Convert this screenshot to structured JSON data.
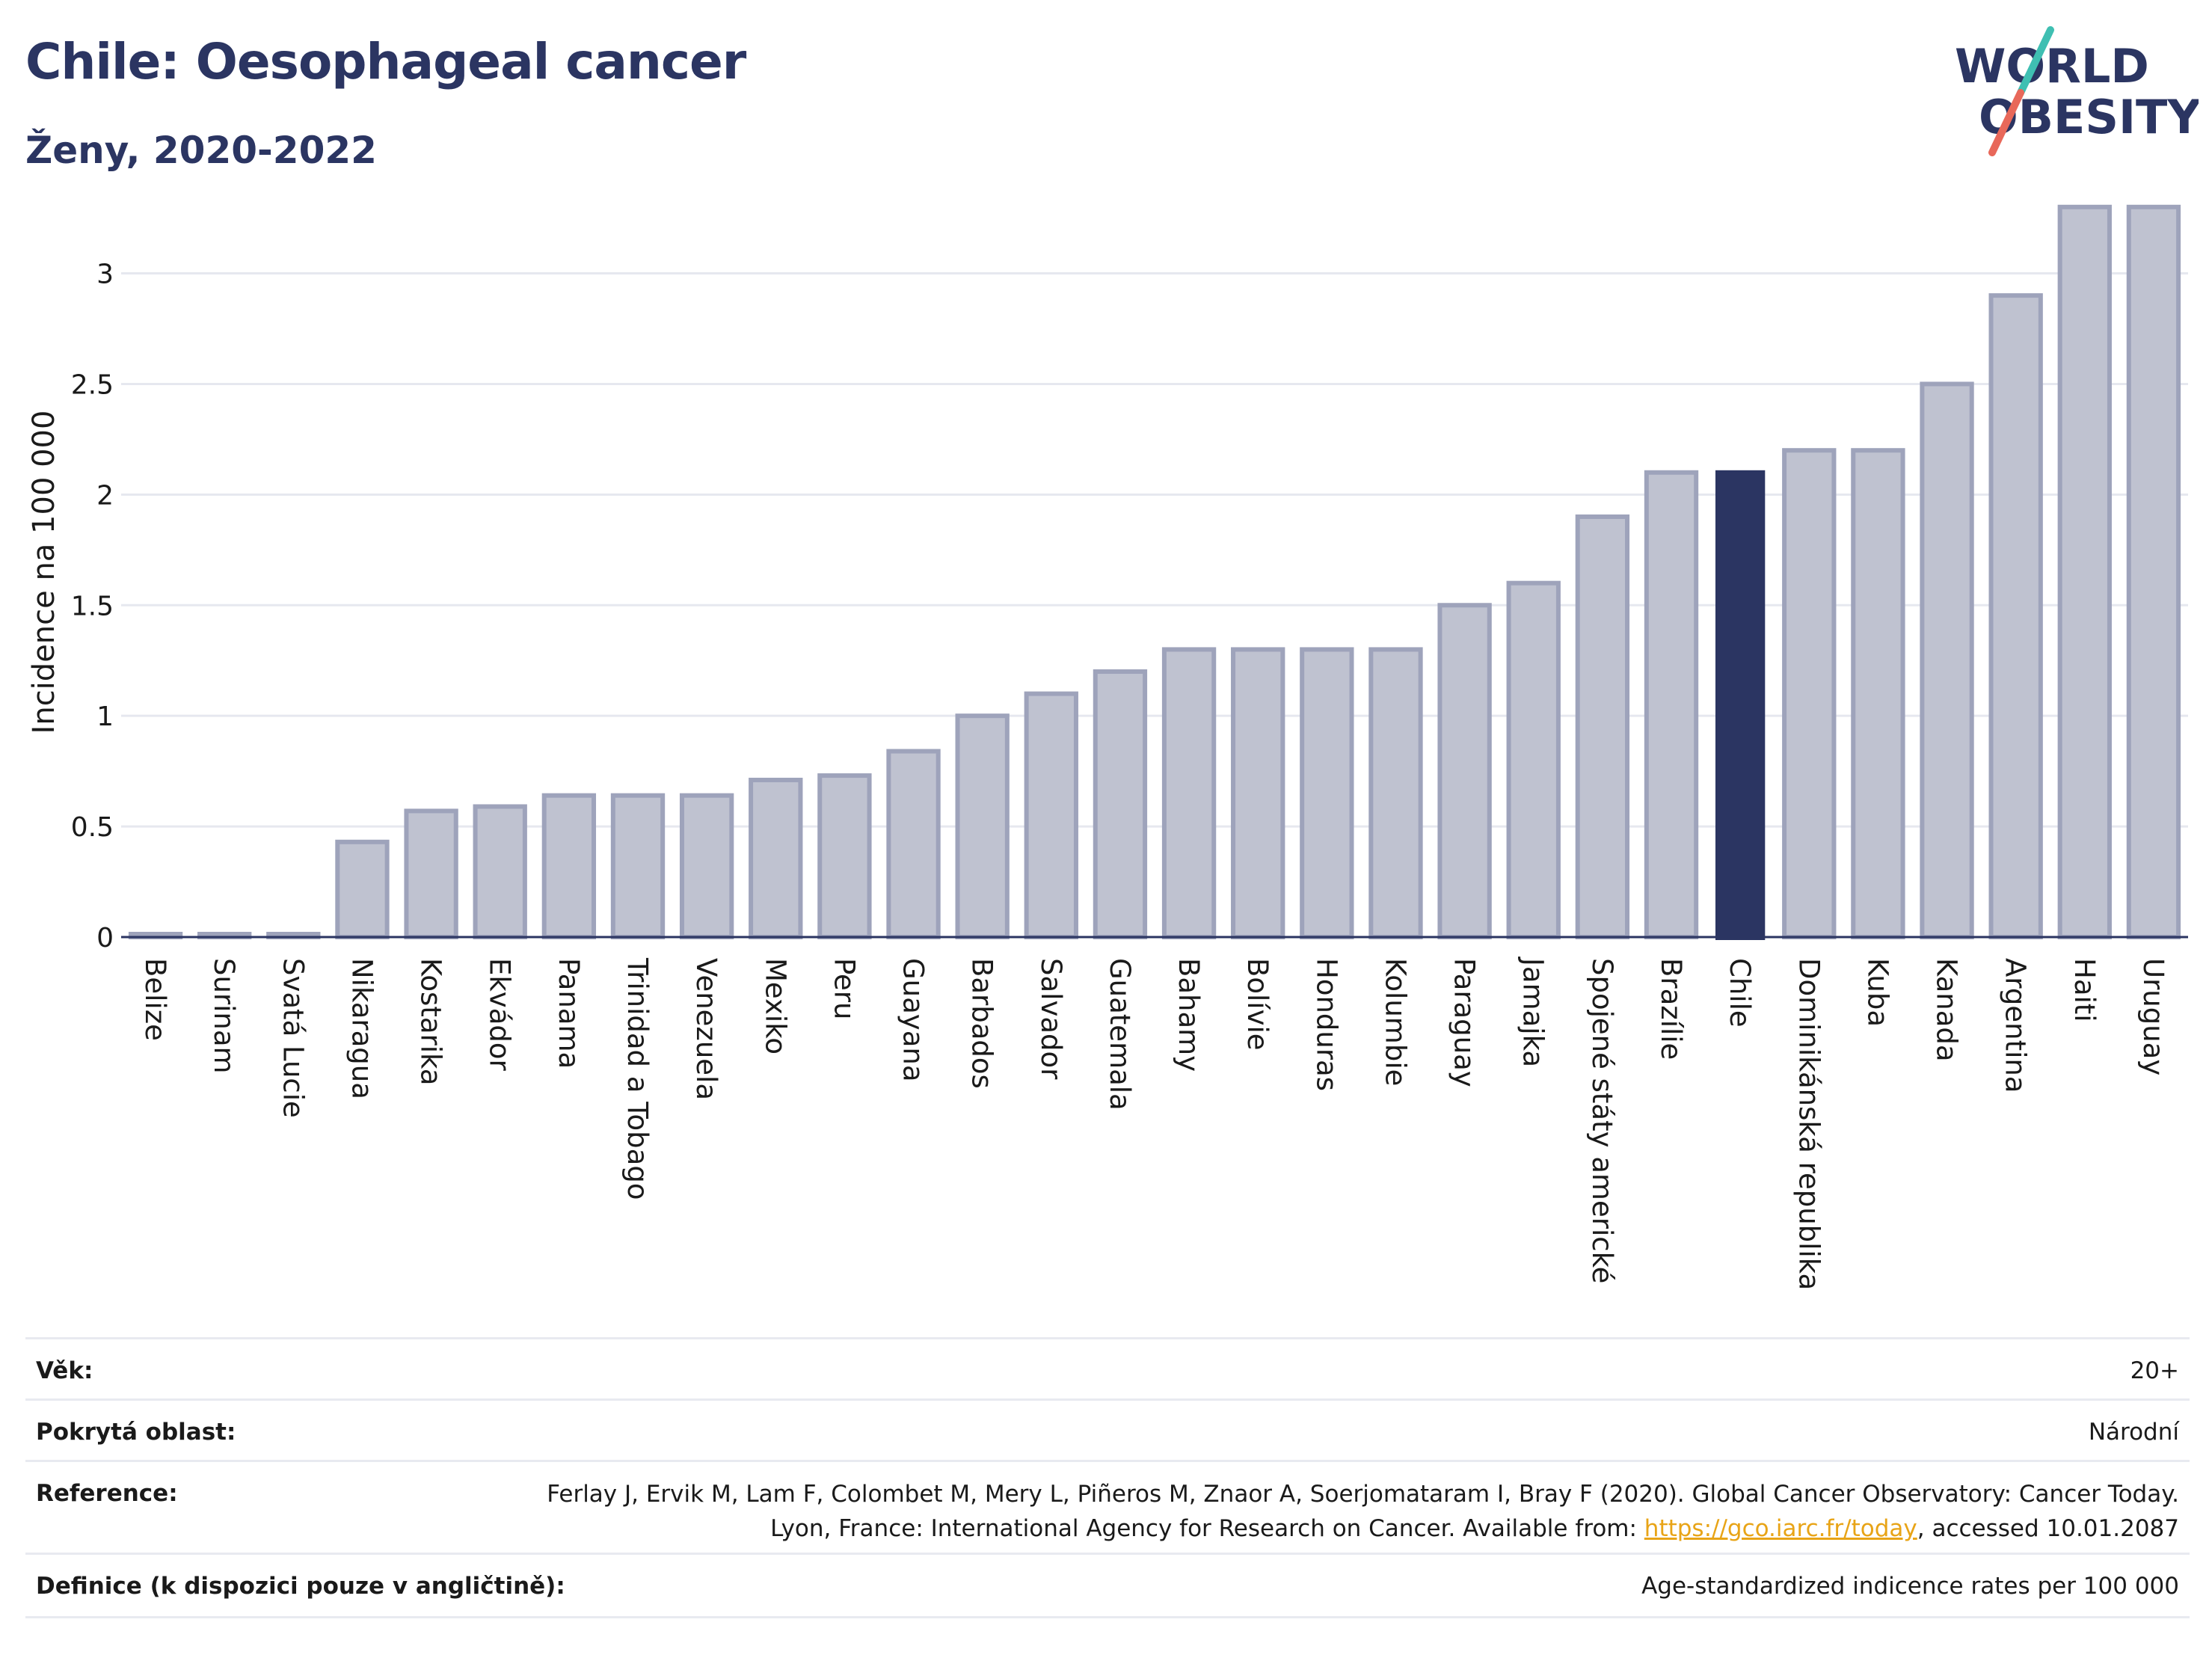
{
  "header": {
    "title": "Chile: Oesophageal cancer",
    "subtitle": "Ženy, 2020-2022",
    "logo_line1": "WORLD",
    "logo_line2": "OBESITY"
  },
  "colors": {
    "highlight": "#2b3562",
    "bar_fill": "#bfc2d0",
    "bar_stroke": "#9ea3bb",
    "grid": "#e6e8ef",
    "logo_teal": "#3fbfb2",
    "logo_red": "#e8685a"
  },
  "chart_data": {
    "type": "bar",
    "ylabel": "Incidence na 100 000",
    "ylim": [
      0,
      3.35
    ],
    "yticks": [
      0,
      0.5,
      1,
      1.5,
      2,
      2.5,
      3
    ],
    "ytick_labels": [
      "0",
      "0.5",
      "1",
      "1.5",
      "2",
      "2.5",
      "3"
    ],
    "highlight": "Chile",
    "grid": true,
    "categories": [
      "Belize",
      "Surinam",
      "Svatá Lucie",
      "Nikaragua",
      "Kostarika",
      "Ekvádor",
      "Panama",
      "Trinidad a Tobago",
      "Venezuela",
      "Mexiko",
      "Peru",
      "Guayana",
      "Barbados",
      "Salvador",
      "Guatemala",
      "Bahamy",
      "Bolívie",
      "Honduras",
      "Kolumbie",
      "Paraguay",
      "Jamajka",
      "Spojené státy americké",
      "Brazílie",
      "Chile",
      "Dominikánská republika",
      "Kuba",
      "Kanada",
      "Argentina",
      "Haiti",
      "Uruguay"
    ],
    "values": [
      0.01,
      0.01,
      0.01,
      0.43,
      0.57,
      0.59,
      0.64,
      0.64,
      0.64,
      0.71,
      0.73,
      0.84,
      1.0,
      1.1,
      1.2,
      1.3,
      1.3,
      1.3,
      1.3,
      1.5,
      1.6,
      1.9,
      2.1,
      2.11,
      2.2,
      2.2,
      2.5,
      2.9,
      3.3,
      3.3
    ]
  },
  "info": {
    "age_label": "Věk:",
    "age_value": "20+",
    "area_label": "Pokrytá oblast:",
    "area_value": "Národní",
    "ref_label": "Reference:",
    "ref_text_1": "Ferlay J, Ervik M, Lam F, Colombet M, Mery L, Piñeros M, Znaor A, Soerjomataram I, Bray F (2020). Global Cancer Observatory: Cancer Today. Lyon, France: International Agency for Research on Cancer. Available from: ",
    "ref_link": "https://gco.iarc.fr/today",
    "ref_text_2": ", accessed 10.01.2087",
    "def_label": "Definice (k dispozici pouze v angličtině):",
    "def_value": "Age-standardized indicence rates per 100 000"
  }
}
